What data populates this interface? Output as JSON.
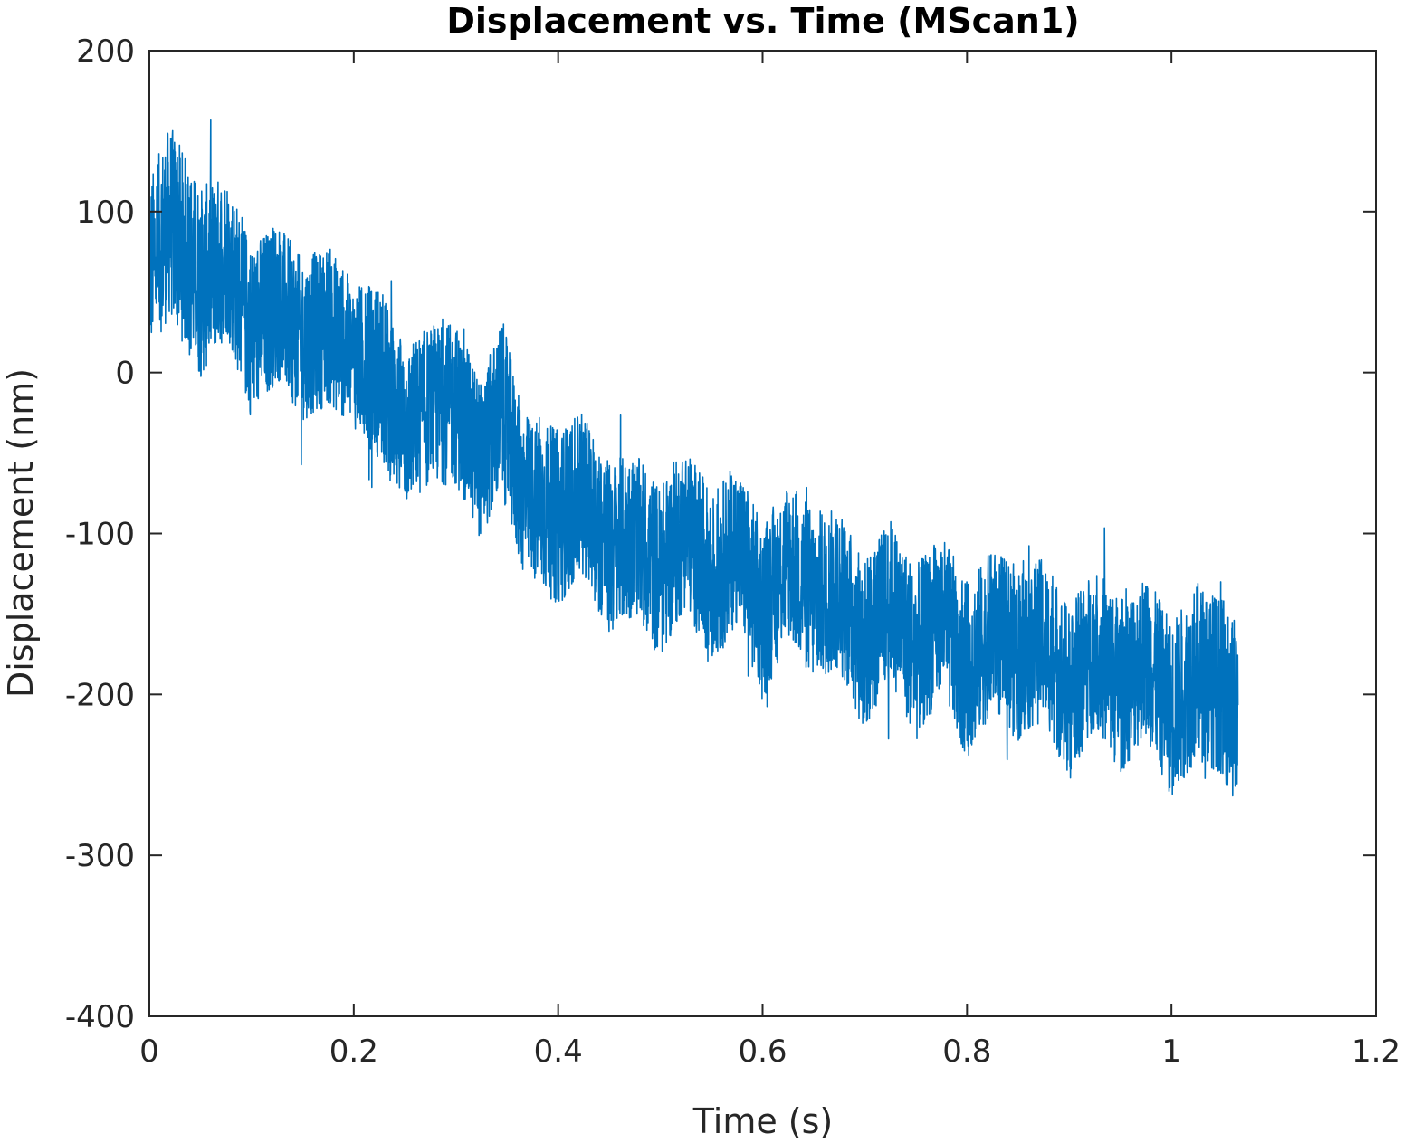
{
  "chart_data": {
    "type": "line",
    "title": "Displacement vs. Time (MScan1)",
    "xlabel": "Time (s)",
    "ylabel": "Displacement (nm)",
    "xlim": [
      0,
      1.2
    ],
    "ylim": [
      -400,
      200
    ],
    "x_ticks": [
      "0",
      "0.2",
      "0.4",
      "0.6",
      "0.8",
      "1",
      "1.2"
    ],
    "y_ticks": [
      "200",
      "100",
      "0",
      "-100",
      "-200",
      "-300",
      "-400"
    ],
    "x_tick_values": [
      0,
      0.2,
      0.4,
      0.6,
      0.8,
      1,
      1.2
    ],
    "y_tick_values": [
      200,
      100,
      0,
      -100,
      -200,
      -300,
      -400
    ],
    "grid": false,
    "line_color": "#0072BD",
    "series": [
      {
        "name": "",
        "x": [
          0,
          0.02,
          0.05,
          0.075,
          0.1,
          0.125,
          0.15,
          0.175,
          0.2,
          0.225,
          0.25,
          0.275,
          0.3,
          0.325,
          0.345,
          0.365,
          0.4,
          0.425,
          0.45,
          0.475,
          0.5,
          0.525,
          0.55,
          0.575,
          0.6,
          0.625,
          0.65,
          0.675,
          0.7,
          0.725,
          0.75,
          0.775,
          0.8,
          0.825,
          0.85,
          0.875,
          0.9,
          0.925,
          0.95,
          0.975,
          1.0,
          1.025,
          1.05,
          1.065
        ],
        "center": [
          65,
          95,
          55,
          75,
          25,
          45,
          20,
          30,
          10,
          0,
          -35,
          -20,
          -20,
          -55,
          -20,
          -75,
          -90,
          -75,
          -110,
          -100,
          -125,
          -95,
          -130,
          -105,
          -150,
          -115,
          -140,
          -135,
          -170,
          -140,
          -175,
          -150,
          -185,
          -160,
          -175,
          -165,
          -200,
          -170,
          -195,
          -175,
          -210,
          -185,
          -195,
          -215
        ],
        "band": [
          55,
          60,
          60,
          50,
          55,
          50,
          50,
          50,
          45,
          55,
          50,
          50,
          50,
          50,
          55,
          50,
          55,
          50,
          55,
          50,
          55,
          50,
          55,
          50,
          55,
          50,
          55,
          50,
          55,
          50,
          55,
          50,
          55,
          50,
          55,
          50,
          55,
          50,
          55,
          50,
          55,
          55,
          55,
          60
        ],
        "peak_max": 200,
        "peak_min": -320
      }
    ]
  }
}
